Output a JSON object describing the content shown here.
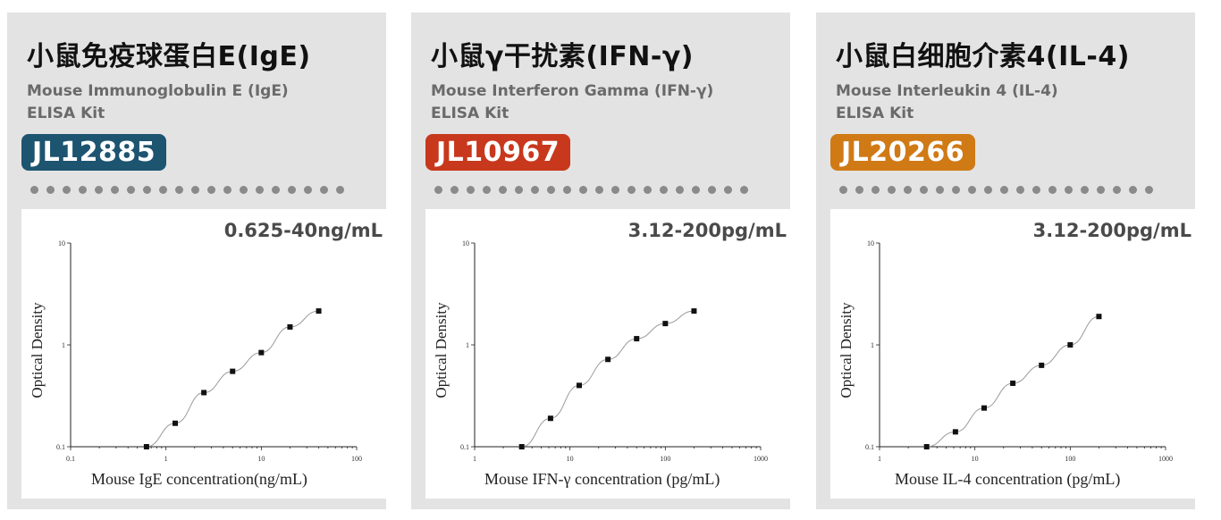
{
  "colors": {
    "card_bg": "#e3e3e3",
    "badge_blue": "#1d5470",
    "badge_red": "#c8381c",
    "badge_orange": "#d07a16"
  },
  "chart_data": [
    {
      "type": "scatter",
      "title": "小鼠免疫球蛋白E(IgE)",
      "subtitle_line1": "Mouse Immunoglobulin E (IgE)",
      "subtitle_line2": "ELISA Kit",
      "catalog": "JL12885",
      "range": "0.625-40ng/mL",
      "xlabel": "Mouse IgE concentration(ng/mL)",
      "ylabel": "Optical Density",
      "xscale": "log",
      "yscale": "log",
      "xlim": [
        0.1,
        100
      ],
      "ylim": [
        0.1,
        10
      ],
      "x_ticks": [
        "0.1",
        "1",
        "10",
        "100"
      ],
      "y_ticks": [
        "10",
        "1",
        "0.1"
      ],
      "x": [
        0.625,
        1.25,
        2.5,
        5,
        10,
        20,
        40
      ],
      "y": [
        0.1,
        0.17,
        0.34,
        0.55,
        0.84,
        1.5,
        2.15
      ]
    },
    {
      "type": "scatter",
      "title": "小鼠γ干扰素(IFN-γ)",
      "subtitle_line1": "Mouse Interferon Gamma (IFN-γ)",
      "subtitle_line2": "ELISA Kit",
      "catalog": "JL10967",
      "range": "3.12-200pg/mL",
      "xlabel": "Mouse IFN-γ concentration (pg/mL)",
      "ylabel": "Optical Density",
      "xscale": "log",
      "yscale": "log",
      "xlim": [
        1,
        1000
      ],
      "ylim": [
        0.1,
        10
      ],
      "x_ticks": [
        "1",
        "10",
        "100",
        "1000"
      ],
      "y_ticks": [
        "10",
        "1",
        "0.1"
      ],
      "x": [
        3.12,
        6.25,
        12.5,
        25,
        50,
        100,
        200
      ],
      "y": [
        0.1,
        0.19,
        0.4,
        0.72,
        1.15,
        1.62,
        2.15
      ]
    },
    {
      "type": "scatter",
      "title": "小鼠白细胞介素4(IL-4)",
      "subtitle_line1": "Mouse Interleukin 4 (IL-4)",
      "subtitle_line2": "ELISA Kit",
      "catalog": "JL20266",
      "range": "3.12-200pg/mL",
      "xlabel": "Mouse IL-4 concentration (pg/mL)",
      "ylabel": "Optical Density",
      "xscale": "log",
      "yscale": "log",
      "xlim": [
        1,
        1000
      ],
      "ylim": [
        0.1,
        10
      ],
      "x_ticks": [
        "1",
        "10",
        "100",
        "1000"
      ],
      "y_ticks": [
        "10",
        "1",
        "0.1"
      ],
      "x": [
        3.12,
        6.25,
        12.5,
        25,
        50,
        100,
        200
      ],
      "y": [
        0.1,
        0.14,
        0.24,
        0.42,
        0.63,
        1.0,
        1.9
      ]
    }
  ]
}
